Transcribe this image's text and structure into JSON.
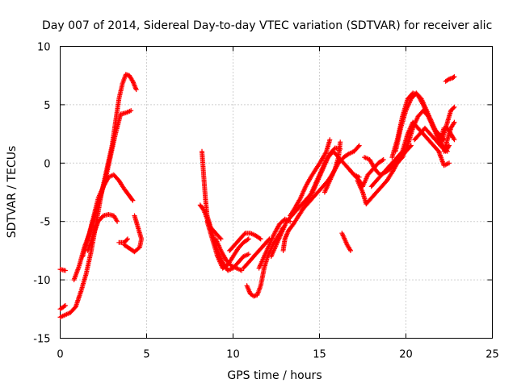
{
  "chart_data": {
    "type": "scatter",
    "title": "Day 007 of 2014, Sidereal Day-to-day VTEC variation (SDTVAR) for receiver alic",
    "xlabel": "GPS time / hours",
    "ylabel": "SDTVAR / TECUs",
    "xlim": [
      0,
      25
    ],
    "ylim": [
      -15,
      10
    ],
    "x_ticks": [
      0,
      5,
      10,
      15,
      20,
      25
    ],
    "y_ticks": [
      -15,
      -10,
      -5,
      0,
      5,
      10
    ],
    "grid": true,
    "marker": "+",
    "marker_color": "#ff0000",
    "tracks": [
      {
        "points": [
          [
            0.0,
            -9.1
          ],
          [
            0.3,
            -9.2
          ]
        ]
      },
      {
        "points": [
          [
            0.0,
            -13.2
          ],
          [
            0.3,
            -13.0
          ],
          [
            0.6,
            -12.8
          ],
          [
            0.9,
            -12.3
          ],
          [
            1.2,
            -11.0
          ],
          [
            1.5,
            -9.5
          ],
          [
            1.8,
            -7.5
          ],
          [
            2.1,
            -5.0
          ],
          [
            2.4,
            -2.5
          ],
          [
            2.7,
            -0.5
          ],
          [
            3.0,
            1.5
          ],
          [
            3.2,
            3.5
          ],
          [
            3.4,
            5.5
          ],
          [
            3.6,
            6.8
          ],
          [
            3.8,
            7.6
          ],
          [
            4.0,
            7.5
          ],
          [
            4.2,
            7.0
          ],
          [
            4.4,
            6.3
          ]
        ]
      },
      {
        "points": [
          [
            0.0,
            -12.5
          ],
          [
            0.3,
            -12.2
          ]
        ]
      },
      {
        "points": [
          [
            0.8,
            -10.0
          ],
          [
            1.1,
            -8.8
          ],
          [
            1.4,
            -7.2
          ],
          [
            1.7,
            -6.0
          ],
          [
            2.0,
            -4.5
          ],
          [
            2.3,
            -3.0
          ],
          [
            2.6,
            -1.5
          ],
          [
            2.9,
            0.5
          ],
          [
            3.2,
            2.5
          ],
          [
            3.5,
            4.2
          ],
          [
            3.8,
            4.3
          ],
          [
            4.1,
            4.5
          ]
        ]
      },
      {
        "points": [
          [
            1.3,
            -8.0
          ],
          [
            1.6,
            -6.5
          ],
          [
            1.9,
            -4.8
          ],
          [
            2.2,
            -3.0
          ],
          [
            2.5,
            -2.0
          ],
          [
            2.8,
            -1.2
          ],
          [
            3.1,
            -1.0
          ],
          [
            3.4,
            -1.5
          ],
          [
            3.7,
            -2.2
          ],
          [
            4.0,
            -2.8
          ],
          [
            4.2,
            -3.2
          ]
        ]
      },
      {
        "points": [
          [
            1.6,
            -7.5
          ],
          [
            1.9,
            -6.2
          ],
          [
            2.2,
            -5.0
          ],
          [
            2.5,
            -4.5
          ],
          [
            2.8,
            -4.4
          ],
          [
            3.1,
            -4.5
          ],
          [
            3.3,
            -5.0
          ]
        ]
      },
      {
        "points": [
          [
            3.4,
            -6.8
          ],
          [
            3.7,
            -6.8
          ],
          [
            3.9,
            -6.5
          ]
        ]
      },
      {
        "points": [
          [
            4.3,
            -4.5
          ],
          [
            4.5,
            -5.5
          ],
          [
            4.7,
            -6.5
          ],
          [
            4.6,
            -7.2
          ],
          [
            4.3,
            -7.6
          ],
          [
            4.0,
            -7.3
          ],
          [
            3.7,
            -7.0
          ]
        ]
      },
      {
        "points": [
          [
            8.2,
            1.0
          ],
          [
            8.3,
            -1.0
          ],
          [
            8.4,
            -3.0
          ],
          [
            8.5,
            -4.5
          ],
          [
            8.7,
            -5.5
          ],
          [
            9.0,
            -6.0
          ],
          [
            9.3,
            -6.5
          ]
        ]
      },
      {
        "points": [
          [
            8.1,
            -3.6
          ],
          [
            8.3,
            -4.0
          ],
          [
            8.5,
            -4.8
          ],
          [
            8.8,
            -6.0
          ],
          [
            9.1,
            -7.5
          ],
          [
            9.4,
            -8.5
          ],
          [
            9.7,
            -9.2
          ],
          [
            10.0,
            -9.0
          ],
          [
            10.3,
            -8.5
          ],
          [
            10.6,
            -8.0
          ],
          [
            10.9,
            -7.8
          ]
        ]
      },
      {
        "points": [
          [
            8.5,
            -5.0
          ],
          [
            8.8,
            -6.5
          ],
          [
            9.1,
            -8.0
          ],
          [
            9.4,
            -9.0
          ],
          [
            9.7,
            -8.7
          ],
          [
            10.0,
            -8.0
          ],
          [
            10.3,
            -7.3
          ],
          [
            10.6,
            -6.8
          ],
          [
            10.9,
            -6.5
          ]
        ]
      },
      {
        "points": [
          [
            9.0,
            -6.5
          ],
          [
            9.3,
            -7.5
          ],
          [
            9.6,
            -8.3
          ],
          [
            9.9,
            -8.8
          ],
          [
            10.2,
            -9.0
          ],
          [
            10.5,
            -9.2
          ]
        ]
      },
      {
        "points": [
          [
            9.8,
            -7.5
          ],
          [
            10.1,
            -7.0
          ],
          [
            10.4,
            -6.5
          ],
          [
            10.7,
            -6.0
          ],
          [
            11.0,
            -6.0
          ],
          [
            11.3,
            -6.2
          ],
          [
            11.6,
            -6.5
          ]
        ]
      },
      {
        "points": [
          [
            10.8,
            -10.5
          ],
          [
            11.0,
            -11.2
          ],
          [
            11.2,
            -11.4
          ],
          [
            11.4,
            -11.3
          ],
          [
            11.6,
            -10.5
          ],
          [
            11.8,
            -9.0
          ],
          [
            12.0,
            -8.0
          ],
          [
            12.3,
            -7.0
          ],
          [
            12.6,
            -6.3
          ],
          [
            12.9,
            -5.5
          ]
        ]
      },
      {
        "points": [
          [
            10.6,
            -9.0
          ],
          [
            10.9,
            -8.5
          ],
          [
            11.2,
            -8.0
          ],
          [
            11.5,
            -7.5
          ],
          [
            11.8,
            -7.0
          ],
          [
            12.1,
            -6.5
          ]
        ]
      },
      {
        "points": [
          [
            11.5,
            -9.0
          ],
          [
            11.8,
            -8.0
          ],
          [
            12.1,
            -7.0
          ],
          [
            12.4,
            -6.0
          ],
          [
            12.7,
            -5.2
          ],
          [
            13.0,
            -4.8
          ],
          [
            13.3,
            -5.0
          ]
        ]
      },
      {
        "points": [
          [
            12.2,
            -8.0
          ],
          [
            12.5,
            -7.0
          ],
          [
            12.8,
            -6.0
          ],
          [
            13.1,
            -5.0
          ],
          [
            13.4,
            -4.5
          ],
          [
            13.7,
            -4.0
          ],
          [
            14.0,
            -3.5
          ],
          [
            14.3,
            -3.0
          ],
          [
            14.6,
            -2.5
          ],
          [
            14.9,
            -1.5
          ],
          [
            15.2,
            -0.5
          ],
          [
            15.5,
            0.5
          ],
          [
            15.8,
            1.0
          ],
          [
            16.1,
            0.5
          ],
          [
            16.4,
            0.0
          ],
          [
            16.7,
            -0.5
          ],
          [
            17.0,
            -1.0
          ],
          [
            17.3,
            -1.2
          ]
        ]
      },
      {
        "points": [
          [
            12.9,
            -7.5
          ],
          [
            13.0,
            -6.5
          ],
          [
            13.2,
            -5.8
          ],
          [
            13.5,
            -5.2
          ],
          [
            13.8,
            -4.5
          ],
          [
            14.1,
            -3.8
          ],
          [
            14.4,
            -3.0
          ],
          [
            14.7,
            -2.0
          ],
          [
            15.0,
            -1.0
          ],
          [
            15.3,
            0.0
          ],
          [
            15.6,
            0.8
          ],
          [
            15.9,
            1.3
          ],
          [
            16.2,
            1.2
          ]
        ]
      },
      {
        "points": [
          [
            13.3,
            -4.5
          ],
          [
            13.6,
            -3.8
          ],
          [
            13.9,
            -3.0
          ],
          [
            14.2,
            -2.0
          ],
          [
            14.5,
            -1.2
          ],
          [
            14.8,
            -0.5
          ],
          [
            15.1,
            0.2
          ],
          [
            15.4,
            1.0
          ],
          [
            15.6,
            2.0
          ]
        ]
      },
      {
        "points": [
          [
            14.0,
            -4.0
          ],
          [
            14.3,
            -3.5
          ],
          [
            14.6,
            -3.0
          ],
          [
            14.9,
            -2.5
          ],
          [
            15.2,
            -2.0
          ],
          [
            15.5,
            -1.5
          ],
          [
            15.8,
            -0.8
          ],
          [
            16.1,
            0.0
          ],
          [
            16.4,
            0.5
          ],
          [
            16.7,
            0.8
          ],
          [
            17.0,
            1.0
          ],
          [
            17.3,
            1.5
          ]
        ]
      },
      {
        "points": [
          [
            15.3,
            -2.5
          ],
          [
            15.6,
            -1.5
          ],
          [
            15.9,
            -0.5
          ],
          [
            16.1,
            0.5
          ],
          [
            16.2,
            1.8
          ]
        ]
      },
      {
        "points": [
          [
            16.3,
            -6.0
          ],
          [
            16.6,
            -7.0
          ],
          [
            16.8,
            -7.5
          ]
        ]
      },
      {
        "points": [
          [
            16.7,
            -0.5
          ],
          [
            17.0,
            -1.0
          ],
          [
            17.3,
            -1.5
          ],
          [
            17.5,
            -2.0
          ]
        ]
      },
      {
        "points": [
          [
            17.2,
            -1.5
          ],
          [
            17.5,
            -2.5
          ],
          [
            17.7,
            -3.5
          ],
          [
            18.0,
            -3.0
          ],
          [
            18.3,
            -2.5
          ],
          [
            18.6,
            -2.0
          ],
          [
            18.9,
            -1.5
          ],
          [
            19.2,
            -0.8
          ],
          [
            19.5,
            0.0
          ],
          [
            19.8,
            0.5
          ],
          [
            20.1,
            1.5
          ],
          [
            20.4,
            3.0
          ],
          [
            20.7,
            4.0
          ],
          [
            21.0,
            4.5
          ],
          [
            21.3,
            4.0
          ],
          [
            21.6,
            3.0
          ],
          [
            21.9,
            2.0
          ]
        ]
      },
      {
        "points": [
          [
            17.5,
            -2.0
          ],
          [
            17.8,
            -1.0
          ],
          [
            18.1,
            -0.5
          ],
          [
            18.4,
            0.0
          ],
          [
            18.7,
            0.3
          ]
        ]
      },
      {
        "points": [
          [
            17.6,
            0.5
          ],
          [
            17.9,
            0.3
          ],
          [
            18.2,
            -0.5
          ],
          [
            18.5,
            -1.0
          ],
          [
            18.8,
            -0.8
          ],
          [
            19.1,
            -0.5
          ],
          [
            19.4,
            0.0
          ],
          [
            19.7,
            0.5
          ],
          [
            20.0,
            1.0
          ],
          [
            20.3,
            1.5
          ]
        ]
      },
      {
        "points": [
          [
            18.0,
            -2.0
          ],
          [
            18.3,
            -1.5
          ],
          [
            18.6,
            -1.0
          ],
          [
            18.9,
            -0.5
          ],
          [
            19.2,
            0.0
          ],
          [
            19.5,
            0.5
          ],
          [
            19.8,
            1.0
          ],
          [
            20.1,
            2.5
          ],
          [
            20.4,
            3.5
          ],
          [
            20.7,
            3.0
          ],
          [
            21.0,
            2.5
          ],
          [
            21.3,
            2.0
          ],
          [
            21.6,
            1.5
          ],
          [
            21.9,
            1.0
          ],
          [
            22.2,
            -0.2
          ],
          [
            22.5,
            0.0
          ]
        ]
      },
      {
        "points": [
          [
            19.2,
            0.5
          ],
          [
            19.5,
            2.0
          ],
          [
            19.8,
            4.0
          ],
          [
            20.1,
            5.5
          ],
          [
            20.4,
            6.0
          ],
          [
            20.7,
            5.8
          ],
          [
            21.0,
            5.0
          ],
          [
            21.3,
            4.0
          ],
          [
            21.6,
            3.0
          ],
          [
            21.9,
            2.5
          ],
          [
            22.2,
            2.0
          ]
        ]
      },
      {
        "points": [
          [
            19.4,
            1.0
          ],
          [
            19.7,
            3.0
          ],
          [
            20.0,
            4.5
          ],
          [
            20.3,
            5.5
          ],
          [
            20.6,
            6.0
          ],
          [
            20.9,
            5.5
          ],
          [
            21.2,
            4.5
          ],
          [
            21.5,
            3.5
          ],
          [
            21.8,
            2.5
          ],
          [
            22.1,
            1.5
          ],
          [
            22.4,
            1.0
          ]
        ]
      },
      {
        "points": [
          [
            20.5,
            2.0
          ],
          [
            20.8,
            2.5
          ],
          [
            21.1,
            3.0
          ],
          [
            21.4,
            2.5
          ],
          [
            21.7,
            2.0
          ],
          [
            22.0,
            1.5
          ],
          [
            22.3,
            1.0
          ],
          [
            22.5,
            1.5
          ]
        ]
      },
      {
        "points": [
          [
            22.0,
            1.5
          ],
          [
            22.2,
            2.5
          ],
          [
            22.4,
            3.5
          ],
          [
            22.6,
            4.5
          ],
          [
            22.8,
            4.8
          ]
        ]
      },
      {
        "points": [
          [
            22.0,
            2.0
          ],
          [
            22.2,
            3.0
          ],
          [
            22.4,
            3.0
          ],
          [
            22.6,
            2.5
          ],
          [
            22.8,
            2.0
          ]
        ]
      },
      {
        "points": [
          [
            22.2,
            1.0
          ],
          [
            22.4,
            2.0
          ],
          [
            22.6,
            3.0
          ],
          [
            22.8,
            3.5
          ]
        ]
      },
      {
        "points": [
          [
            22.3,
            7.0
          ],
          [
            22.5,
            7.2
          ],
          [
            22.7,
            7.3
          ],
          [
            22.8,
            7.4
          ]
        ]
      }
    ]
  }
}
